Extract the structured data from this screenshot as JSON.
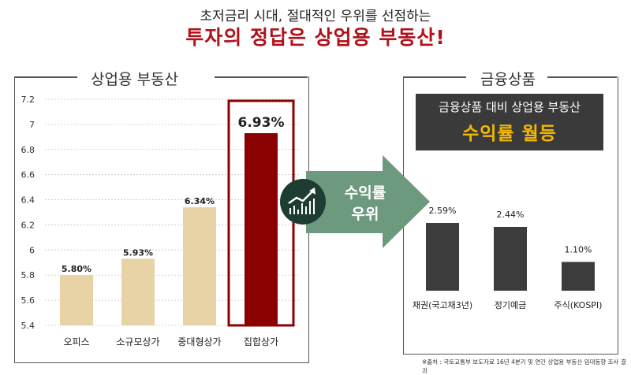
{
  "header": {
    "subtitle": "초저금리 시대, 절대적인 우위를 선점하는",
    "headline": "투자의 정답은 상업용 부동산!"
  },
  "left_panel": {
    "title": "상업용 부동산"
  },
  "right_panel": {
    "title": "금융상품",
    "box_line1": "금융상품 대비 상업용 부동산",
    "box_line2": "수익률 월등"
  },
  "arrow": {
    "label_line1": "수익률",
    "label_line2": "우위",
    "icon": "growth-chart-icon"
  },
  "footnote": "※출처 : 국토교통부 보도자료 16년 4분기 및 연간 상업용 부동산 임대동향 조사 결과",
  "colors": {
    "headline": "#b0121b",
    "bar_beige": "#e8d3a6",
    "bar_highlight": "#8b0000",
    "bar_gray": "#3c3c3c",
    "arrow": "#6d9a7e",
    "icon_circle": "#1d3d33",
    "box_accent": "#f5b800"
  },
  "chart_data": [
    {
      "type": "bar",
      "categories": [
        "오피스",
        "소규모상가",
        "중대형상가",
        "집합상가"
      ],
      "values": [
        5.8,
        5.93,
        6.34,
        6.93
      ],
      "value_labels": [
        "5.80%",
        "5.93%",
        "6.34%",
        "6.93%"
      ],
      "highlight_index": 3,
      "yticks": [
        "7.2",
        "7",
        "6.8",
        "6.6",
        "6.4",
        "6.2",
        "6",
        "5.8",
        "5.6",
        "5.4"
      ],
      "ylim": [
        5.4,
        7.2
      ],
      "grid": true,
      "title": "",
      "xlabel": "",
      "ylabel": ""
    },
    {
      "type": "bar",
      "categories": [
        "채권(국고채3년)",
        "정기예금",
        "주식(KOSPI)"
      ],
      "values": [
        2.59,
        2.44,
        1.1
      ],
      "value_labels": [
        "2.59%",
        "2.44%",
        "1.10%"
      ],
      "ylim": [
        0,
        3.2
      ],
      "grid": false,
      "title": "",
      "xlabel": "",
      "ylabel": ""
    }
  ]
}
